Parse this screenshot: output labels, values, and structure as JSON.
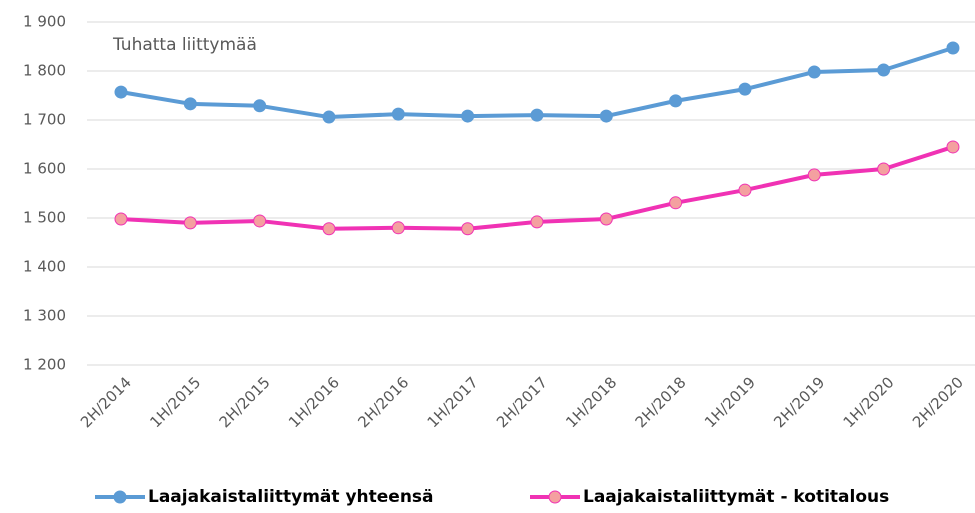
{
  "chart_data": {
    "type": "line",
    "annotation": "Tuhatta liittymää",
    "categories": [
      "2H/2014",
      "1H/2015",
      "2H/2015",
      "1H/2016",
      "2H/2016",
      "1H/2017",
      "2H/2017",
      "1H/2018",
      "2H/2018",
      "1H/2019",
      "2H/2019",
      "1H/2020",
      "2H/2020"
    ],
    "series": [
      {
        "name": "Laajakaistaliittymät yhteensä",
        "color": "#5b9bd5",
        "marker_color": "#5b9bd5",
        "values": [
          1757,
          1733,
          1729,
          1706,
          1712,
          1708,
          1710,
          1708,
          1739,
          1763,
          1798,
          1802,
          1847
        ]
      },
      {
        "name": "Laajakaistaliittymät - kotitalous",
        "color": "#f032b4",
        "marker_color": "#f4a0a0",
        "values": [
          1498,
          1490,
          1494,
          1478,
          1480,
          1478,
          1492,
          1498,
          1531,
          1557,
          1588,
          1600,
          1645
        ]
      }
    ],
    "ylim": [
      1200,
      1900
    ],
    "yticks": [
      {
        "value": 1200,
        "label": "1 200"
      },
      {
        "value": 1300,
        "label": "1 300"
      },
      {
        "value": 1400,
        "label": "1 400"
      },
      {
        "value": 1500,
        "label": "1 500"
      },
      {
        "value": 1600,
        "label": "1 600"
      },
      {
        "value": 1700,
        "label": "1 700"
      },
      {
        "value": 1800,
        "label": "1 800"
      },
      {
        "value": 1900,
        "label": "1 900"
      }
    ],
    "grid": true,
    "legend": "bottom"
  }
}
